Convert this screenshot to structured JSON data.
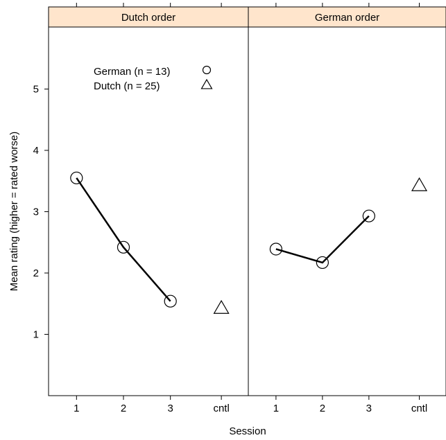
{
  "chart_data": {
    "type": "line",
    "xlabel": "Session",
    "ylabel": "Mean rating (higher = rated worse)",
    "categories": [
      "1",
      "2",
      "3",
      "cntl"
    ],
    "yticks": [
      1,
      2,
      3,
      4,
      5
    ],
    "ylim": [
      0,
      6
    ],
    "grid": false,
    "legend": {
      "placement": "top-left of first panel",
      "entries": [
        {
          "label": "German (n = 13)",
          "symbol": "circle"
        },
        {
          "label": "Dutch (n = 25)",
          "symbol": "triangle"
        }
      ]
    },
    "panels": [
      {
        "strip": "Dutch order",
        "german": {
          "x": [
            "1",
            "2",
            "3"
          ],
          "values": [
            3.55,
            2.42,
            1.54
          ]
        },
        "dutch": {
          "x": [
            "cntl"
          ],
          "values": [
            1.42
          ]
        }
      },
      {
        "strip": "German order",
        "german": {
          "x": [
            "1",
            "2",
            "3"
          ],
          "values": [
            2.39,
            2.17,
            2.93
          ]
        },
        "dutch": {
          "x": [
            "cntl"
          ],
          "values": [
            3.42
          ]
        }
      }
    ],
    "colors": {
      "strip_bg": "#ffe5cc",
      "line": "#000000"
    }
  }
}
